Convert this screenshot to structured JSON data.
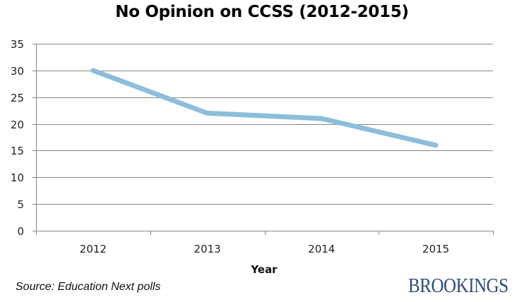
{
  "chart_data": {
    "type": "line",
    "title": "No Opinion on CCSS (2012-2015)",
    "xlabel": "Year",
    "ylabel": "",
    "categories": [
      "2012",
      "2013",
      "2014",
      "2015"
    ],
    "series": [
      {
        "name": "No Opinion",
        "values": [
          30,
          22,
          21,
          16
        ],
        "color": "#8cbedb"
      }
    ],
    "ylim": [
      0,
      35
    ],
    "yticks": [
      0,
      5,
      10,
      15,
      20,
      25,
      30,
      35
    ],
    "grid": true,
    "legend": "none"
  },
  "footer": {
    "source": "Source: Education Next polls",
    "logo": "BROOKINGS"
  },
  "colors": {
    "line": "#8cbedb",
    "grid": "#868686",
    "logo": "#2f4a7a"
  }
}
